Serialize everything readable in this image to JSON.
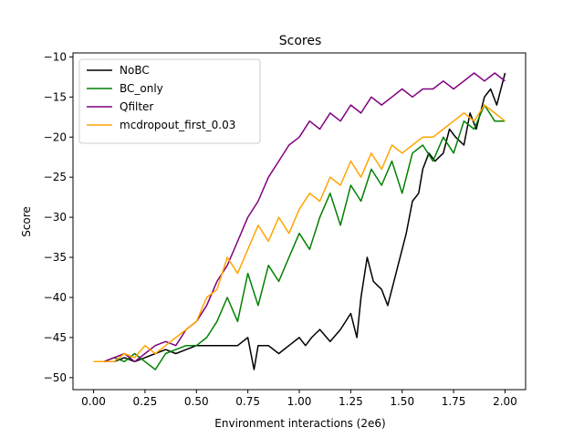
{
  "chart_data": {
    "type": "line",
    "title": "Scores",
    "xlabel": "Environment interactions (2e6)",
    "ylabel": "Score",
    "xlim": [
      -0.1,
      2.1
    ],
    "ylim": [
      -51.5,
      -9.5
    ],
    "xticks": [
      0.0,
      0.25,
      0.5,
      0.75,
      1.0,
      1.25,
      1.5,
      1.75,
      2.0
    ],
    "xtick_labels": [
      "0.00",
      "0.25",
      "0.50",
      "0.75",
      "1.00",
      "1.25",
      "1.50",
      "1.75",
      "2.00"
    ],
    "yticks": [
      -50,
      -45,
      -40,
      -35,
      -30,
      -25,
      -20,
      -15,
      -10
    ],
    "ytick_labels": [
      "−50",
      "−45",
      "−40",
      "−35",
      "−30",
      "−25",
      "−20",
      "−15",
      "−10"
    ],
    "grid": false,
    "legend_position": "top-left",
    "series": [
      {
        "name": "NoBC",
        "color": "#000000",
        "x": [
          0.0,
          0.05,
          0.1,
          0.15,
          0.2,
          0.25,
          0.3,
          0.35,
          0.4,
          0.45,
          0.5,
          0.55,
          0.6,
          0.65,
          0.7,
          0.75,
          0.78,
          0.8,
          0.85,
          0.9,
          0.95,
          1.0,
          1.03,
          1.06,
          1.1,
          1.15,
          1.2,
          1.25,
          1.28,
          1.3,
          1.33,
          1.36,
          1.4,
          1.43,
          1.46,
          1.48,
          1.5,
          1.52,
          1.55,
          1.58,
          1.6,
          1.63,
          1.66,
          1.7,
          1.73,
          1.76,
          1.8,
          1.83,
          1.86,
          1.9,
          1.93,
          1.96,
          2.0
        ],
        "y": [
          -48,
          -48,
          -48,
          -47.5,
          -48,
          -47.5,
          -47,
          -46.5,
          -47,
          -46.5,
          -46,
          -46,
          -46,
          -46,
          -46,
          -45,
          -49,
          -46,
          -46,
          -47,
          -46,
          -45,
          -46,
          -45,
          -44,
          -45.5,
          -44,
          -42,
          -45,
          -40,
          -35,
          -38,
          -39,
          -41,
          -38,
          -36,
          -34,
          -32,
          -28,
          -27,
          -24,
          -22,
          -23,
          -22,
          -19,
          -20,
          -21,
          -17,
          -19,
          -15,
          -14,
          -16,
          -12
        ]
      },
      {
        "name": "BC_only",
        "color": "#008000",
        "x": [
          0.0,
          0.05,
          0.1,
          0.15,
          0.2,
          0.25,
          0.3,
          0.35,
          0.4,
          0.45,
          0.5,
          0.55,
          0.6,
          0.65,
          0.7,
          0.75,
          0.8,
          0.85,
          0.9,
          0.95,
          1.0,
          1.05,
          1.1,
          1.15,
          1.2,
          1.25,
          1.3,
          1.35,
          1.4,
          1.45,
          1.5,
          1.55,
          1.6,
          1.65,
          1.7,
          1.75,
          1.8,
          1.85,
          1.9,
          1.95,
          2.0
        ],
        "y": [
          -48,
          -48,
          -47.5,
          -48,
          -47,
          -48,
          -49,
          -47,
          -46.5,
          -46,
          -46,
          -45,
          -43,
          -40,
          -43,
          -37,
          -41,
          -36,
          -38,
          -35,
          -32,
          -34,
          -30,
          -27,
          -31,
          -26,
          -28,
          -24,
          -26,
          -23,
          -27,
          -22,
          -21,
          -23,
          -20,
          -22,
          -18,
          -19,
          -16,
          -18,
          -18
        ]
      },
      {
        "name": "Qfilter",
        "color": "#800080",
        "x": [
          0.0,
          0.05,
          0.1,
          0.15,
          0.2,
          0.25,
          0.3,
          0.35,
          0.4,
          0.45,
          0.5,
          0.55,
          0.6,
          0.65,
          0.7,
          0.75,
          0.8,
          0.85,
          0.9,
          0.95,
          1.0,
          1.05,
          1.1,
          1.15,
          1.2,
          1.25,
          1.3,
          1.35,
          1.4,
          1.45,
          1.5,
          1.55,
          1.6,
          1.65,
          1.7,
          1.75,
          1.8,
          1.85,
          1.9,
          1.95,
          2.0
        ],
        "y": [
          -48,
          -48,
          -47.5,
          -47,
          -48,
          -47,
          -46,
          -45.5,
          -46,
          -44,
          -43,
          -41,
          -38,
          -36,
          -33,
          -30,
          -28,
          -25,
          -23,
          -21,
          -20,
          -18,
          -19,
          -17,
          -18,
          -16,
          -17,
          -15,
          -16,
          -15,
          -14,
          -15,
          -14,
          -14,
          -13,
          -14,
          -13,
          -12,
          -13,
          -12,
          -13
        ]
      },
      {
        "name": "mcdropout_first_0.03",
        "color": "#ffa500",
        "x": [
          0.0,
          0.05,
          0.1,
          0.15,
          0.2,
          0.25,
          0.3,
          0.35,
          0.4,
          0.45,
          0.5,
          0.55,
          0.6,
          0.65,
          0.7,
          0.75,
          0.8,
          0.85,
          0.9,
          0.95,
          1.0,
          1.05,
          1.1,
          1.15,
          1.2,
          1.25,
          1.3,
          1.35,
          1.4,
          1.45,
          1.5,
          1.55,
          1.6,
          1.65,
          1.7,
          1.75,
          1.8,
          1.85,
          1.9,
          1.95,
          2.0
        ],
        "y": [
          -48,
          -48,
          -48,
          -47,
          -47.5,
          -46,
          -47,
          -46,
          -45,
          -44,
          -43,
          -40,
          -39,
          -35,
          -37,
          -34,
          -31,
          -33,
          -30,
          -32,
          -29,
          -27,
          -28,
          -25,
          -26,
          -23,
          -25,
          -22,
          -24,
          -21,
          -22,
          -21,
          -20,
          -20,
          -19,
          -18,
          -17,
          -18,
          -16,
          -17,
          -18
        ]
      }
    ]
  }
}
